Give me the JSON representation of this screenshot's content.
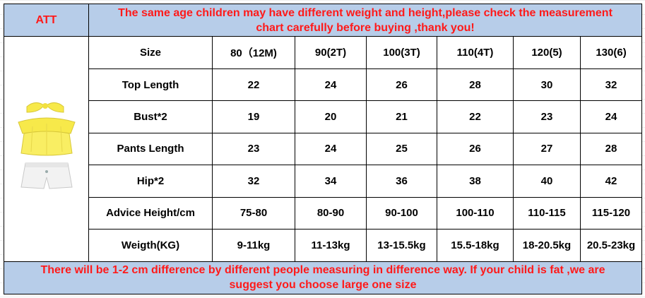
{
  "header": {
    "brand": "ATT",
    "notice_line1": "The same age children may have different weight and height,please check the measurement",
    "notice_line2": "chart carefully before buying ,thank you!"
  },
  "table": {
    "columns": [
      "Size",
      "80（12M)",
      "90(2T)",
      "100(3T)",
      "110(4T)",
      "120(5)",
      "130(6)"
    ],
    "rows": [
      {
        "label": "Top Length",
        "values": [
          "22",
          "24",
          "26",
          "28",
          "30",
          "32"
        ]
      },
      {
        "label": "Bust*2",
        "values": [
          "19",
          "20",
          "21",
          "22",
          "23",
          "24"
        ]
      },
      {
        "label": "Pants Length",
        "values": [
          "23",
          "24",
          "25",
          "26",
          "27",
          "28"
        ]
      },
      {
        "label": "Hip*2",
        "values": [
          "32",
          "34",
          "36",
          "38",
          "40",
          "42"
        ]
      },
      {
        "label": "Advice Height/cm",
        "values": [
          "75-80",
          "80-90",
          "90-100",
          "100-110",
          "110-115",
          "115-120"
        ]
      },
      {
        "label": "Weigth(KG)",
        "values": [
          "9-11kg",
          "11-13kg",
          "13-15.5kg",
          "15.5-18kg",
          "18-20.5kg",
          "20.5-23kg"
        ]
      }
    ]
  },
  "footer": {
    "notice_line1": "There will be 1-2 cm difference by different people measuring in difference way. If your child is fat ,we are",
    "notice_line2": "suggest you choose large one size"
  },
  "colors": {
    "banner_bg": "#b7cde9",
    "banner_text": "#ff1a1a",
    "top_yellow": "#f7e94a",
    "shorts_white": "#f2f2f2"
  },
  "icons": {
    "product": "product-outfit-icon"
  }
}
